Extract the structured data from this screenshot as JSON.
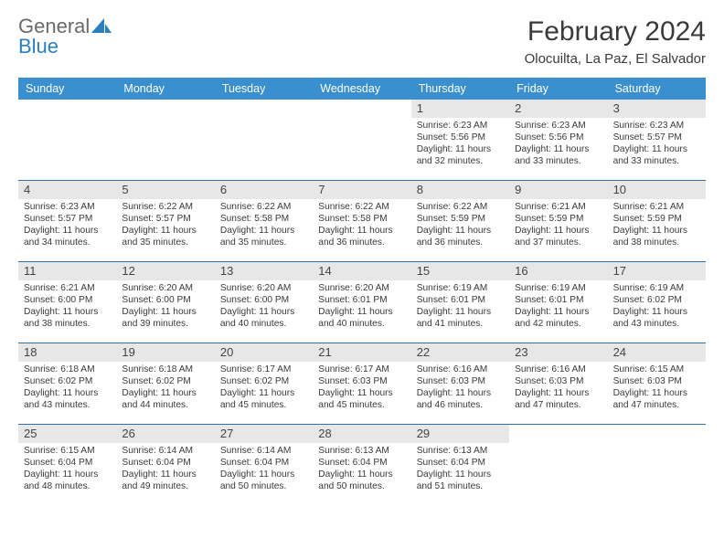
{
  "brand": {
    "w1": "General",
    "w2": "Blue"
  },
  "title": "February 2024",
  "location": "Olocuilta, La Paz, El Salvador",
  "colors": {
    "header_bg": "#3a8fce",
    "header_fg": "#ffffff",
    "daynum_bg": "#e7e7e7",
    "rule": "#2f6fa5",
    "text": "#323232"
  },
  "layout": {
    "cols": 7,
    "weeks": 5,
    "first_day_col": 4
  },
  "daynames": [
    "Sunday",
    "Monday",
    "Tuesday",
    "Wednesday",
    "Thursday",
    "Friday",
    "Saturday"
  ],
  "days": [
    {
      "n": 1,
      "sr": "6:23 AM",
      "ss": "5:56 PM",
      "dl": "11 hours and 32 minutes."
    },
    {
      "n": 2,
      "sr": "6:23 AM",
      "ss": "5:56 PM",
      "dl": "11 hours and 33 minutes."
    },
    {
      "n": 3,
      "sr": "6:23 AM",
      "ss": "5:57 PM",
      "dl": "11 hours and 33 minutes."
    },
    {
      "n": 4,
      "sr": "6:23 AM",
      "ss": "5:57 PM",
      "dl": "11 hours and 34 minutes."
    },
    {
      "n": 5,
      "sr": "6:22 AM",
      "ss": "5:57 PM",
      "dl": "11 hours and 35 minutes."
    },
    {
      "n": 6,
      "sr": "6:22 AM",
      "ss": "5:58 PM",
      "dl": "11 hours and 35 minutes."
    },
    {
      "n": 7,
      "sr": "6:22 AM",
      "ss": "5:58 PM",
      "dl": "11 hours and 36 minutes."
    },
    {
      "n": 8,
      "sr": "6:22 AM",
      "ss": "5:59 PM",
      "dl": "11 hours and 36 minutes."
    },
    {
      "n": 9,
      "sr": "6:21 AM",
      "ss": "5:59 PM",
      "dl": "11 hours and 37 minutes."
    },
    {
      "n": 10,
      "sr": "6:21 AM",
      "ss": "5:59 PM",
      "dl": "11 hours and 38 minutes."
    },
    {
      "n": 11,
      "sr": "6:21 AM",
      "ss": "6:00 PM",
      "dl": "11 hours and 38 minutes."
    },
    {
      "n": 12,
      "sr": "6:20 AM",
      "ss": "6:00 PM",
      "dl": "11 hours and 39 minutes."
    },
    {
      "n": 13,
      "sr": "6:20 AM",
      "ss": "6:00 PM",
      "dl": "11 hours and 40 minutes."
    },
    {
      "n": 14,
      "sr": "6:20 AM",
      "ss": "6:01 PM",
      "dl": "11 hours and 40 minutes."
    },
    {
      "n": 15,
      "sr": "6:19 AM",
      "ss": "6:01 PM",
      "dl": "11 hours and 41 minutes."
    },
    {
      "n": 16,
      "sr": "6:19 AM",
      "ss": "6:01 PM",
      "dl": "11 hours and 42 minutes."
    },
    {
      "n": 17,
      "sr": "6:19 AM",
      "ss": "6:02 PM",
      "dl": "11 hours and 43 minutes."
    },
    {
      "n": 18,
      "sr": "6:18 AM",
      "ss": "6:02 PM",
      "dl": "11 hours and 43 minutes."
    },
    {
      "n": 19,
      "sr": "6:18 AM",
      "ss": "6:02 PM",
      "dl": "11 hours and 44 minutes."
    },
    {
      "n": 20,
      "sr": "6:17 AM",
      "ss": "6:02 PM",
      "dl": "11 hours and 45 minutes."
    },
    {
      "n": 21,
      "sr": "6:17 AM",
      "ss": "6:03 PM",
      "dl": "11 hours and 45 minutes."
    },
    {
      "n": 22,
      "sr": "6:16 AM",
      "ss": "6:03 PM",
      "dl": "11 hours and 46 minutes."
    },
    {
      "n": 23,
      "sr": "6:16 AM",
      "ss": "6:03 PM",
      "dl": "11 hours and 47 minutes."
    },
    {
      "n": 24,
      "sr": "6:15 AM",
      "ss": "6:03 PM",
      "dl": "11 hours and 47 minutes."
    },
    {
      "n": 25,
      "sr": "6:15 AM",
      "ss": "6:04 PM",
      "dl": "11 hours and 48 minutes."
    },
    {
      "n": 26,
      "sr": "6:14 AM",
      "ss": "6:04 PM",
      "dl": "11 hours and 49 minutes."
    },
    {
      "n": 27,
      "sr": "6:14 AM",
      "ss": "6:04 PM",
      "dl": "11 hours and 50 minutes."
    },
    {
      "n": 28,
      "sr": "6:13 AM",
      "ss": "6:04 PM",
      "dl": "11 hours and 50 minutes."
    },
    {
      "n": 29,
      "sr": "6:13 AM",
      "ss": "6:04 PM",
      "dl": "11 hours and 51 minutes."
    }
  ],
  "labels": {
    "sunrise": "Sunrise:",
    "sunset": "Sunset:",
    "daylight": "Daylight:"
  }
}
